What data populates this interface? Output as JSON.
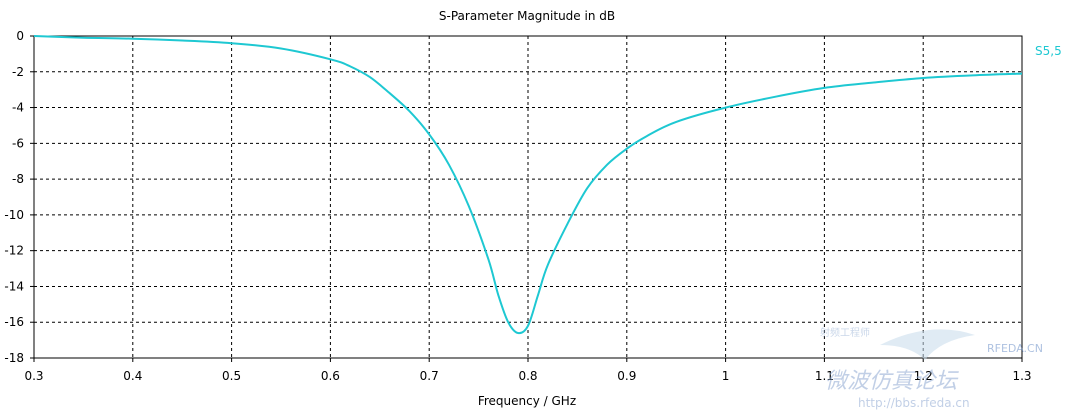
{
  "chart_data": {
    "type": "line",
    "title": "S-Parameter Magnitude in dB",
    "xlabel": "Frequency / GHz",
    "ylabel": "",
    "xlim": [
      0.3,
      1.3
    ],
    "ylim": [
      -18,
      0
    ],
    "x_ticks": [
      "0.3",
      "0.4",
      "0.5",
      "0.6",
      "0.7",
      "0.8",
      "0.9",
      "1",
      "1.1",
      "1.2",
      "1.3"
    ],
    "y_ticks": [
      "0",
      "-2",
      "-4",
      "-6",
      "-8",
      "-10",
      "-12",
      "-14",
      "-16",
      "-18"
    ],
    "grid": true,
    "legend_position": "right",
    "series": [
      {
        "name": "S5,5",
        "color": "#1ec8d2",
        "x": [
          0.3,
          0.35,
          0.4,
          0.45,
          0.5,
          0.55,
          0.6,
          0.62,
          0.64,
          0.66,
          0.68,
          0.7,
          0.72,
          0.74,
          0.76,
          0.77,
          0.78,
          0.79,
          0.8,
          0.81,
          0.82,
          0.84,
          0.86,
          0.88,
          0.9,
          0.92,
          0.95,
          1.0,
          1.05,
          1.1,
          1.15,
          1.2,
          1.25,
          1.3
        ],
        "y": [
          0.0,
          -0.1,
          -0.15,
          -0.25,
          -0.4,
          -0.7,
          -1.3,
          -1.7,
          -2.3,
          -3.2,
          -4.2,
          -5.5,
          -7.2,
          -9.5,
          -12.5,
          -14.5,
          -16.0,
          -16.6,
          -16.2,
          -14.5,
          -12.8,
          -10.5,
          -8.5,
          -7.2,
          -6.3,
          -5.6,
          -4.8,
          -4.0,
          -3.4,
          -2.9,
          -2.6,
          -2.35,
          -2.2,
          -2.1
        ]
      }
    ]
  },
  "watermark": {
    "logo_text": "RFEDA.CN",
    "site_text": "微波仿真论坛",
    "url_text": "http://bbs.rfeda.cn",
    "sub_text": "射频工程师"
  }
}
